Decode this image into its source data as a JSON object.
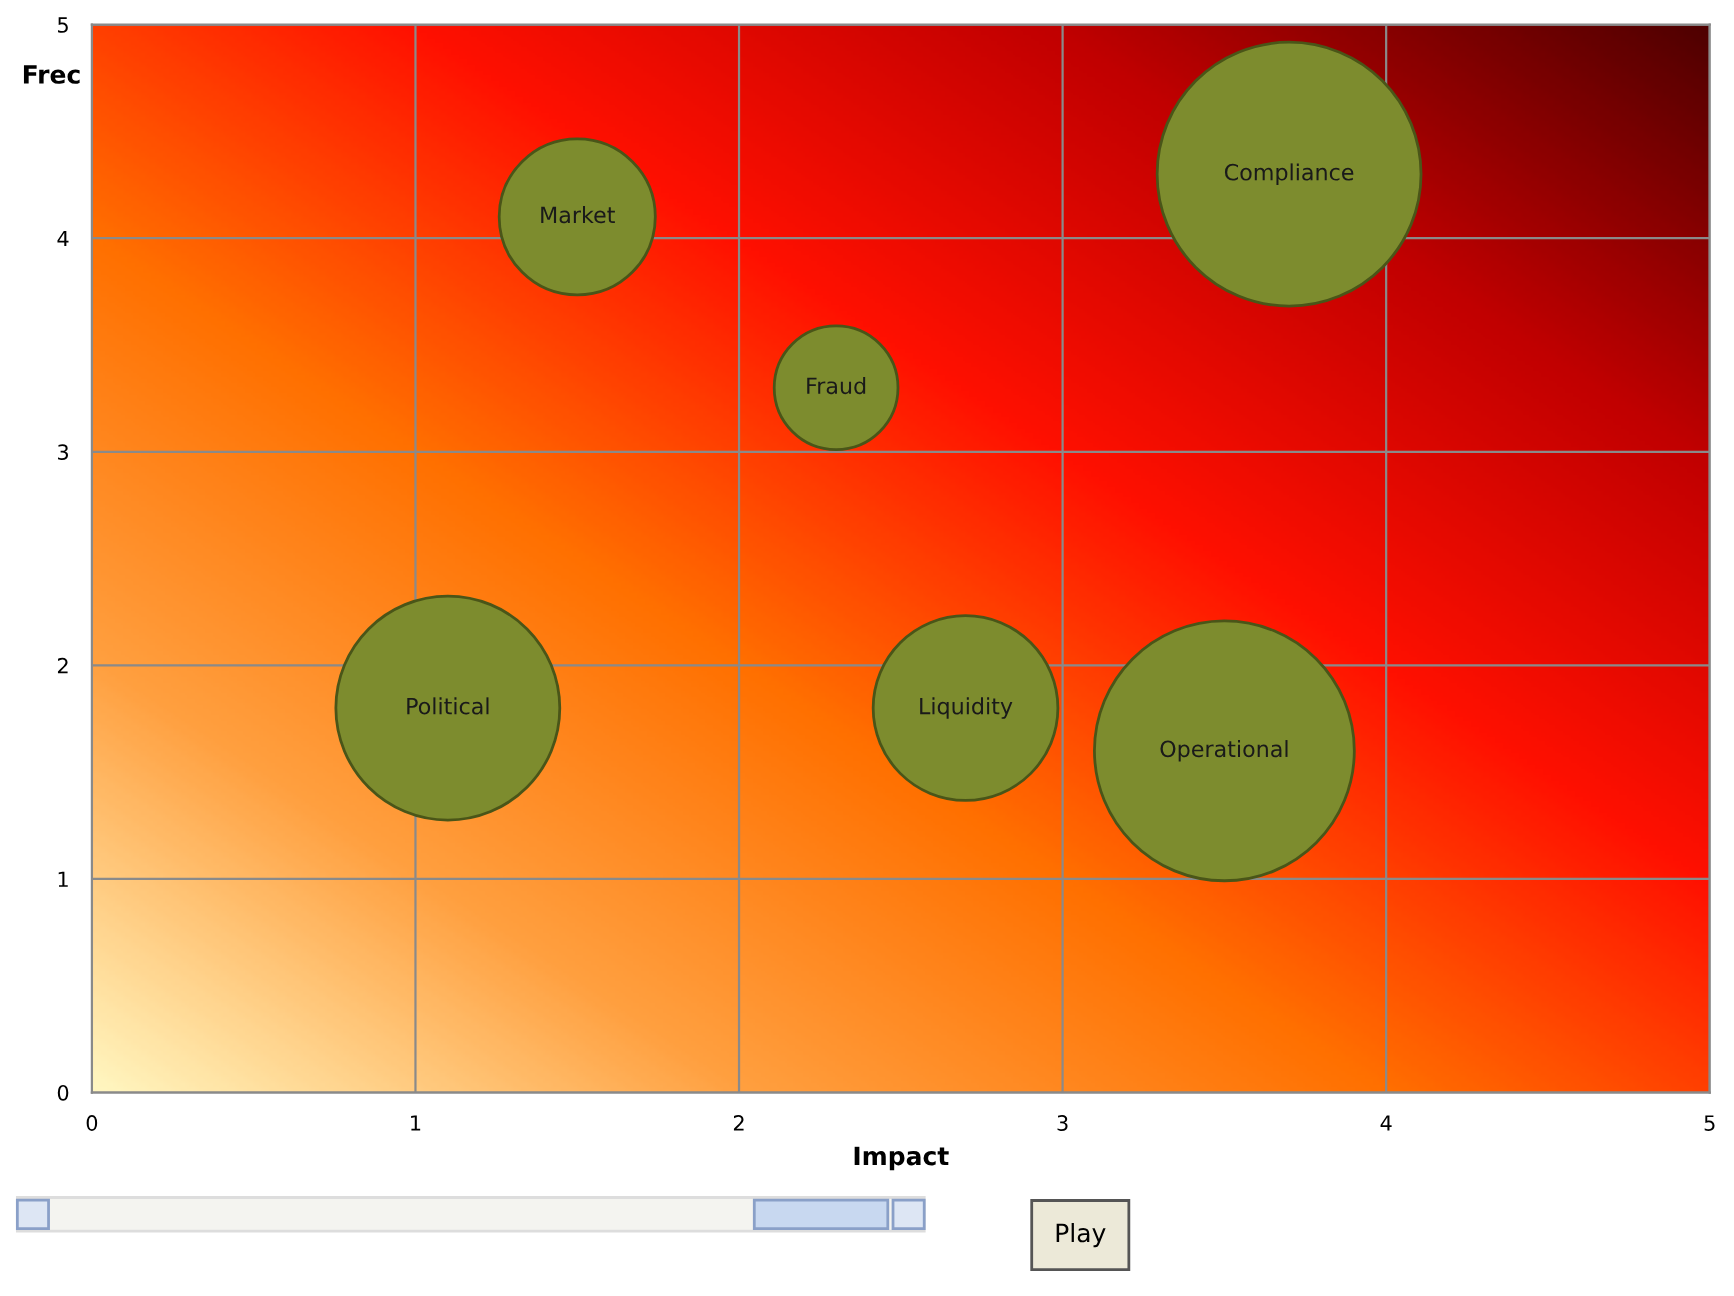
{
  "chart_data": {
    "type": "bubble",
    "xlabel": "Impact",
    "ylabel": "Frec",
    "xlim": [
      0,
      5
    ],
    "ylim": [
      0,
      5
    ],
    "xticks": [
      0,
      1,
      2,
      3,
      4,
      5
    ],
    "yticks": [
      0,
      1,
      2,
      3,
      4,
      5
    ],
    "grid": true,
    "legend": false,
    "series": [
      {
        "name": "Market",
        "color": "#7d8c2e",
        "x": [
          1.5
        ],
        "values": [
          4.1
        ],
        "sizes": [
          0.35
        ]
      },
      {
        "name": "Fraud",
        "color": "#7d8c2e",
        "x": [
          2.3
        ],
        "values": [
          3.3
        ],
        "sizes": [
          0.22
        ]
      },
      {
        "name": "Compliance",
        "color": "#7d8c2e",
        "x": [
          3.7
        ],
        "values": [
          4.3
        ],
        "sizes": [
          1
        ]
      },
      {
        "name": "Political",
        "color": "#7d8c2e",
        "x": [
          1.1
        ],
        "values": [
          1.8
        ],
        "sizes": [
          0.72
        ]
      },
      {
        "name": "Liquidity",
        "color": "#7d8c2e",
        "x": [
          2.7
        ],
        "values": [
          1.8
        ],
        "sizes": [
          0.49
        ]
      },
      {
        "name": "Operational",
        "color": "#7d8c2e",
        "x": [
          3.5
        ],
        "values": [
          1.6
        ],
        "sizes": [
          0.97
        ]
      }
    ],
    "annotations": [
      "Play"
    ]
  }
}
